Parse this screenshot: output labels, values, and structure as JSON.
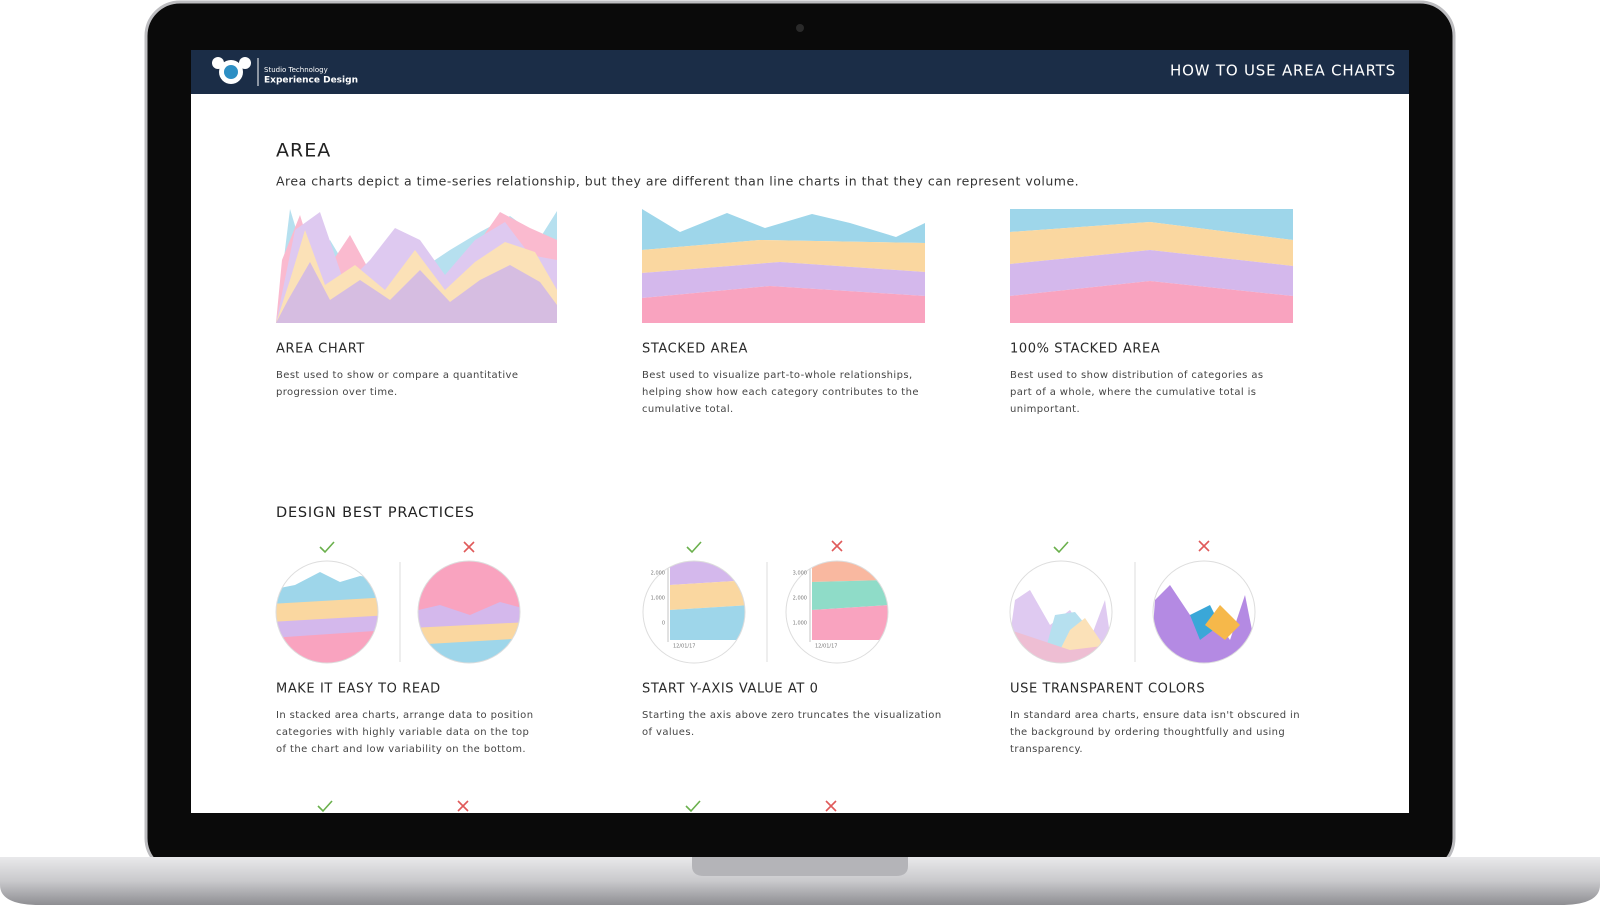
{
  "header": {
    "brand_small": "Studio Technology",
    "brand": "Experience Design",
    "title": "HOW TO USE AREA CHARTS"
  },
  "area": {
    "title": "AREA",
    "intro": "Area charts depict a time-series relationship, but they are different than line charts in that they can represent volume.",
    "types": [
      {
        "title": "AREA CHART",
        "lines": [
          "Best used to show or compare a quantitative",
          "progression over time."
        ]
      },
      {
        "title": "STACKED AREA",
        "lines": [
          "Best used to visualize part-to-whole relationships,",
          "helping show how each category contributes to the",
          "cumulative total."
        ]
      },
      {
        "title": "100% STACKED AREA",
        "lines": [
          "Best used to show distribution of categories as",
          "part of a whole, where the cumulative total is",
          "unimportant."
        ]
      }
    ]
  },
  "practices": {
    "title": "DESIGN BEST PRACTICES",
    "items": [
      {
        "title": "MAKE IT EASY TO READ",
        "lines": [
          "In stacked area charts, arrange data to position",
          "categories with highly variable data on the top",
          "of the chart and low variability on the bottom."
        ]
      },
      {
        "title": "START Y-AXIS VALUE AT 0",
        "lines": [
          "Starting the axis above zero truncates the visualization",
          "of values."
        ],
        "good_axis_labels": [
          "2,000",
          "1,000",
          "0"
        ],
        "bad_axis_labels": [
          "3,000",
          "2,000",
          "1,000"
        ],
        "date_label": "12/01/17"
      },
      {
        "title": "USE TRANSPARENT COLORS",
        "lines": [
          "In standard area charts, ensure data isn't obscured in",
          "the background by ordering thoughtfully and using",
          "transparency."
        ]
      }
    ]
  }
}
